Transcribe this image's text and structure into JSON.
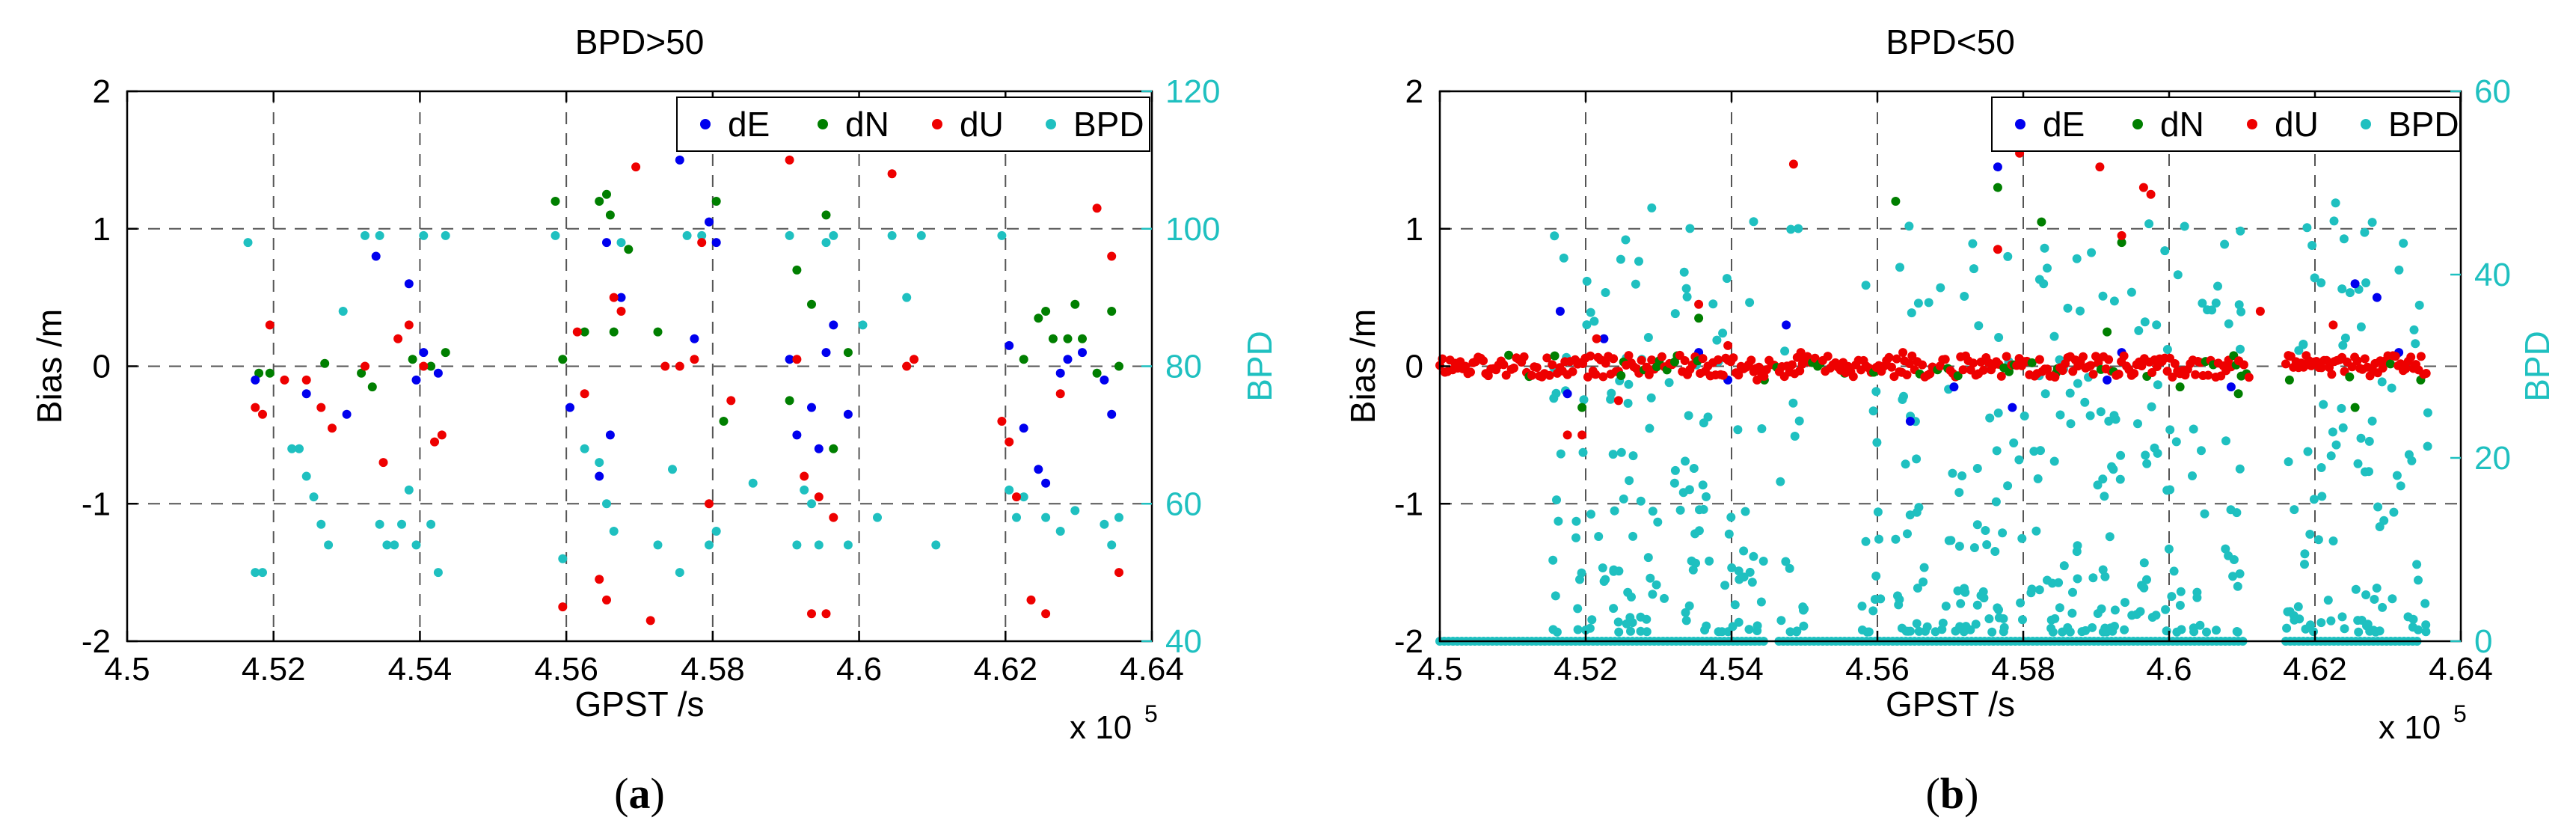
{
  "colors": {
    "dE": "#0000ee",
    "dN": "#007f00",
    "dU": "#ee0000",
    "BPD": "#1fc0c0",
    "grid": "#555555",
    "axis": "#000000"
  },
  "chart_data": [
    {
      "type": "scatter",
      "title": "BPD>50",
      "caption_letter": "a",
      "xlabel": "GPST /s",
      "x_multiplier_label": "x 10",
      "x_multiplier_exp": "5",
      "ylabel_left": "Bias /m",
      "ylabel_right": "BPD",
      "xlim": [
        4.5,
        4.64
      ],
      "ylim_left": [
        -2,
        2
      ],
      "ylim_right": [
        40,
        120
      ],
      "xticks": [
        4.5,
        4.52,
        4.54,
        4.56,
        4.58,
        4.6,
        4.62,
        4.64
      ],
      "xtick_labels": [
        "4.5",
        "4.52",
        "4.54",
        "4.56",
        "4.58",
        "4.6",
        "4.62",
        "4.64"
      ],
      "yticks_left": [
        -2,
        -1,
        0,
        1,
        2
      ],
      "ytick_labels_left": [
        "-2",
        "-1",
        "0",
        "1",
        "2"
      ],
      "yticks_right": [
        40,
        60,
        80,
        100,
        120
      ],
      "ytick_labels_right": [
        "40",
        "60",
        "80",
        "100",
        "120"
      ],
      "grid": true,
      "legend_position": "top-right",
      "series": [
        {
          "name": "dE",
          "axis": "left",
          "points": [
            [
              4.5175,
              -0.1
            ],
            [
              4.5245,
              -0.2
            ],
            [
              4.53,
              -0.35
            ],
            [
              4.534,
              0.8
            ],
            [
              4.5385,
              0.6
            ],
            [
              4.5395,
              -0.1
            ],
            [
              4.5405,
              0.1
            ],
            [
              4.5425,
              -0.05
            ],
            [
              4.5605,
              -0.3
            ],
            [
              4.5645,
              -0.8
            ],
            [
              4.5655,
              0.9
            ],
            [
              4.566,
              -0.5
            ],
            [
              4.5675,
              0.5
            ],
            [
              4.5755,
              1.5
            ],
            [
              4.5775,
              0.2
            ],
            [
              4.5795,
              1.05
            ],
            [
              4.5805,
              0.9
            ],
            [
              4.5905,
              0.05
            ],
            [
              4.5915,
              -0.5
            ],
            [
              4.5935,
              -0.3
            ],
            [
              4.5945,
              -0.6
            ],
            [
              4.5955,
              0.1
            ],
            [
              4.5965,
              0.3
            ],
            [
              4.5985,
              -0.35
            ],
            [
              4.6205,
              0.15
            ],
            [
              4.6225,
              -0.45
            ],
            [
              4.6245,
              -0.75
            ],
            [
              4.6255,
              -0.85
            ],
            [
              4.6275,
              -0.05
            ],
            [
              4.6285,
              0.05
            ],
            [
              4.6305,
              0.1
            ],
            [
              4.6335,
              -0.1
            ],
            [
              4.6345,
              -0.35
            ]
          ]
        },
        {
          "name": "dN",
          "axis": "left",
          "points": [
            [
              4.518,
              -0.05
            ],
            [
              4.5195,
              -0.05
            ],
            [
              4.527,
              0.02
            ],
            [
              4.532,
              -0.05
            ],
            [
              4.5335,
              -0.15
            ],
            [
              4.539,
              0.05
            ],
            [
              4.5415,
              0.0
            ],
            [
              4.5435,
              0.1
            ],
            [
              4.5585,
              1.2
            ],
            [
              4.5595,
              0.05
            ],
            [
              4.5625,
              0.25
            ],
            [
              4.5645,
              1.2
            ],
            [
              4.5655,
              1.25
            ],
            [
              4.566,
              1.1
            ],
            [
              4.5665,
              0.25
            ],
            [
              4.5685,
              0.85
            ],
            [
              4.5725,
              0.25
            ],
            [
              4.5805,
              1.2
            ],
            [
              4.5815,
              -0.4
            ],
            [
              4.5905,
              -0.25
            ],
            [
              4.5915,
              0.7
            ],
            [
              4.5935,
              0.45
            ],
            [
              4.5955,
              1.1
            ],
            [
              4.5965,
              -0.6
            ],
            [
              4.5985,
              0.1
            ],
            [
              4.6225,
              0.05
            ],
            [
              4.6245,
              0.35
            ],
            [
              4.6255,
              0.4
            ],
            [
              4.6265,
              0.2
            ],
            [
              4.6285,
              0.2
            ],
            [
              4.6295,
              0.45
            ],
            [
              4.6305,
              0.2
            ],
            [
              4.6325,
              -0.05
            ],
            [
              4.6345,
              0.4
            ],
            [
              4.6355,
              0.0
            ]
          ]
        },
        {
          "name": "dU",
          "axis": "left",
          "points": [
            [
              4.5175,
              -0.3
            ],
            [
              4.5185,
              -0.35
            ],
            [
              4.5195,
              0.3
            ],
            [
              4.5215,
              -0.1
            ],
            [
              4.5245,
              -0.1
            ],
            [
              4.5265,
              -0.3
            ],
            [
              4.528,
              -0.45
            ],
            [
              4.5325,
              0.0
            ],
            [
              4.535,
              -0.7
            ],
            [
              4.537,
              0.2
            ],
            [
              4.5385,
              0.3
            ],
            [
              4.5405,
              0.0
            ],
            [
              4.542,
              -0.55
            ],
            [
              4.543,
              -0.5
            ],
            [
              4.5595,
              -1.75
            ],
            [
              4.5615,
              0.25
            ],
            [
              4.5625,
              -0.2
            ],
            [
              4.5645,
              -1.55
            ],
            [
              4.5655,
              -1.7
            ],
            [
              4.5665,
              0.5
            ],
            [
              4.5675,
              0.4
            ],
            [
              4.5695,
              1.45
            ],
            [
              4.5715,
              -1.85
            ],
            [
              4.5735,
              0.0
            ],
            [
              4.5755,
              0.0
            ],
            [
              4.5775,
              0.05
            ],
            [
              4.5785,
              0.9
            ],
            [
              4.5795,
              -1.0
            ],
            [
              4.5825,
              -0.25
            ],
            [
              4.5905,
              1.5
            ],
            [
              4.5915,
              0.05
            ],
            [
              4.5925,
              -0.8
            ],
            [
              4.5935,
              -1.8
            ],
            [
              4.5945,
              -0.95
            ],
            [
              4.5955,
              -1.8
            ],
            [
              4.5965,
              -1.1
            ],
            [
              4.6045,
              1.4
            ],
            [
              4.6065,
              0.0
            ],
            [
              4.6075,
              0.05
            ],
            [
              4.6195,
              -0.4
            ],
            [
              4.6205,
              -0.55
            ],
            [
              4.6215,
              -0.95
            ],
            [
              4.6235,
              -1.7
            ],
            [
              4.6255,
              -1.8
            ],
            [
              4.6275,
              -0.2
            ],
            [
              4.6325,
              1.15
            ],
            [
              4.6345,
              0.8
            ],
            [
              4.6355,
              -1.5
            ]
          ]
        },
        {
          "name": "BPD",
          "axis": "right",
          "points": [
            [
              4.5165,
              98
            ],
            [
              4.5175,
              50
            ],
            [
              4.5185,
              50
            ],
            [
              4.5225,
              68
            ],
            [
              4.5235,
              68
            ],
            [
              4.5245,
              64
            ],
            [
              4.5255,
              61
            ],
            [
              4.5265,
              57
            ],
            [
              4.5275,
              54
            ],
            [
              4.5295,
              88
            ],
            [
              4.5325,
              99
            ],
            [
              4.5345,
              99
            ],
            [
              4.5345,
              57
            ],
            [
              4.5355,
              54
            ],
            [
              4.5365,
              54
            ],
            [
              4.5375,
              57
            ],
            [
              4.5385,
              62
            ],
            [
              4.5395,
              54
            ],
            [
              4.5405,
              99
            ],
            [
              4.5415,
              57
            ],
            [
              4.5425,
              50
            ],
            [
              4.5435,
              99
            ],
            [
              4.5585,
              99
            ],
            [
              4.5595,
              52
            ],
            [
              4.5625,
              68
            ],
            [
              4.5645,
              66
            ],
            [
              4.5655,
              60
            ],
            [
              4.5665,
              56
            ],
            [
              4.5675,
              98
            ],
            [
              4.5725,
              54
            ],
            [
              4.5745,
              65
            ],
            [
              4.5755,
              50
            ],
            [
              4.5765,
              99
            ],
            [
              4.5785,
              99
            ],
            [
              4.5795,
              54
            ],
            [
              4.5805,
              56
            ],
            [
              4.5855,
              63
            ],
            [
              4.5905,
              99
            ],
            [
              4.5915,
              54
            ],
            [
              4.5925,
              62
            ],
            [
              4.5935,
              60
            ],
            [
              4.5945,
              54
            ],
            [
              4.5955,
              98
            ],
            [
              4.5965,
              99
            ],
            [
              4.5985,
              54
            ],
            [
              4.6005,
              86
            ],
            [
              4.6025,
              58
            ],
            [
              4.6045,
              99
            ],
            [
              4.6065,
              90
            ],
            [
              4.6085,
              99
            ],
            [
              4.6105,
              54
            ],
            [
              4.6195,
              99
            ],
            [
              4.6205,
              62
            ],
            [
              4.6215,
              58
            ],
            [
              4.6225,
              61
            ],
            [
              4.6255,
              58
            ],
            [
              4.6275,
              56
            ],
            [
              4.6295,
              59
            ],
            [
              4.6335,
              57
            ],
            [
              4.6345,
              54
            ],
            [
              4.6355,
              58
            ]
          ]
        }
      ]
    },
    {
      "type": "scatter",
      "title": "BPD<50",
      "caption_letter": "b",
      "xlabel": "GPST /s",
      "x_multiplier_label": "x 10",
      "x_multiplier_exp": "5",
      "ylabel_left": "Bias /m",
      "ylabel_right": "BPD",
      "xlim": [
        4.5,
        4.64
      ],
      "ylim_left": [
        -2,
        2
      ],
      "ylim_right": [
        0,
        60
      ],
      "xticks": [
        4.5,
        4.52,
        4.54,
        4.56,
        4.58,
        4.6,
        4.62,
        4.64
      ],
      "xtick_labels": [
        "4.5",
        "4.52",
        "4.54",
        "4.56",
        "4.58",
        "4.6",
        "4.62",
        "4.64"
      ],
      "yticks_left": [
        -2,
        -1,
        0,
        1,
        2
      ],
      "ytick_labels_left": [
        "-2",
        "-1",
        "0",
        "1",
        "2"
      ],
      "yticks_right": [
        0,
        20,
        40,
        60
      ],
      "ytick_labels_right": [
        "0",
        "20",
        "40",
        "60"
      ],
      "grid": true,
      "legend_position": "top-right",
      "baseline_segments_bpd": [
        [
          4.5,
          4.5445
        ],
        [
          4.5465,
          4.6105
        ],
        [
          4.616,
          4.6345
        ]
      ],
      "noise_segments_du": [
        [
          4.5,
          4.611
        ],
        [
          4.616,
          4.6355
        ]
      ],
      "dense_bpd_segments": [
        [
          4.5155,
          4.5445,
          0.35
        ],
        [
          4.5465,
          4.55,
          0.25
        ],
        [
          4.5575,
          4.5605,
          0.3
        ],
        [
          4.5625,
          4.6105,
          0.4
        ],
        [
          4.616,
          4.6355,
          0.38
        ]
      ],
      "series": [
        {
          "name": "dE",
          "axis": "left",
          "points": [
            [
              4.5165,
              0.4
            ],
            [
              4.5175,
              -0.2
            ],
            [
              4.5225,
              0.2
            ],
            [
              4.5355,
              0.1
            ],
            [
              4.5395,
              -0.1
            ],
            [
              4.5475,
              0.3
            ],
            [
              4.5645,
              -0.4
            ],
            [
              4.5705,
              -0.15
            ],
            [
              4.5765,
              1.45
            ],
            [
              4.5785,
              -0.3
            ],
            [
              4.5915,
              -0.1
            ],
            [
              4.5935,
              0.1
            ],
            [
              4.6085,
              -0.15
            ],
            [
              4.6255,
              0.6
            ],
            [
              4.6285,
              0.5
            ],
            [
              4.6315,
              0.1
            ]
          ]
        },
        {
          "name": "dN",
          "axis": "left",
          "points": [
            [
              4.5195,
              -0.3
            ],
            [
              4.5355,
              0.35
            ],
            [
              4.5445,
              -0.1
            ],
            [
              4.5555,
              -0.05
            ],
            [
              4.5625,
              1.2
            ],
            [
              4.5765,
              1.3
            ],
            [
              4.5825,
              1.05
            ],
            [
              4.5845,
              -0.05
            ],
            [
              4.5915,
              0.25
            ],
            [
              4.5935,
              0.9
            ],
            [
              4.6015,
              -0.15
            ],
            [
              4.6095,
              -0.2
            ],
            [
              4.6165,
              -0.1
            ],
            [
              4.6255,
              -0.3
            ],
            [
              4.6345,
              -0.1
            ]
          ]
        },
        {
          "name": "dU",
          "axis": "left",
          "points": [
            [
              4.5175,
              -0.5
            ],
            [
              4.5195,
              -0.5
            ],
            [
              4.5215,
              0.2
            ],
            [
              4.5245,
              -0.25
            ],
            [
              4.5355,
              0.45
            ],
            [
              4.5395,
              0.15
            ],
            [
              4.5435,
              -0.1
            ],
            [
              4.5485,
              1.47
            ],
            [
              4.5495,
              0.1
            ],
            [
              4.5635,
              0.1
            ],
            [
              4.5765,
              0.85
            ],
            [
              4.5795,
              1.55
            ],
            [
              4.5905,
              1.45
            ],
            [
              4.5935,
              0.95
            ],
            [
              4.5965,
              1.3
            ],
            [
              4.5975,
              1.25
            ],
            [
              4.6125,
              0.4
            ],
            [
              4.6225,
              0.3
            ]
          ]
        }
      ]
    }
  ]
}
